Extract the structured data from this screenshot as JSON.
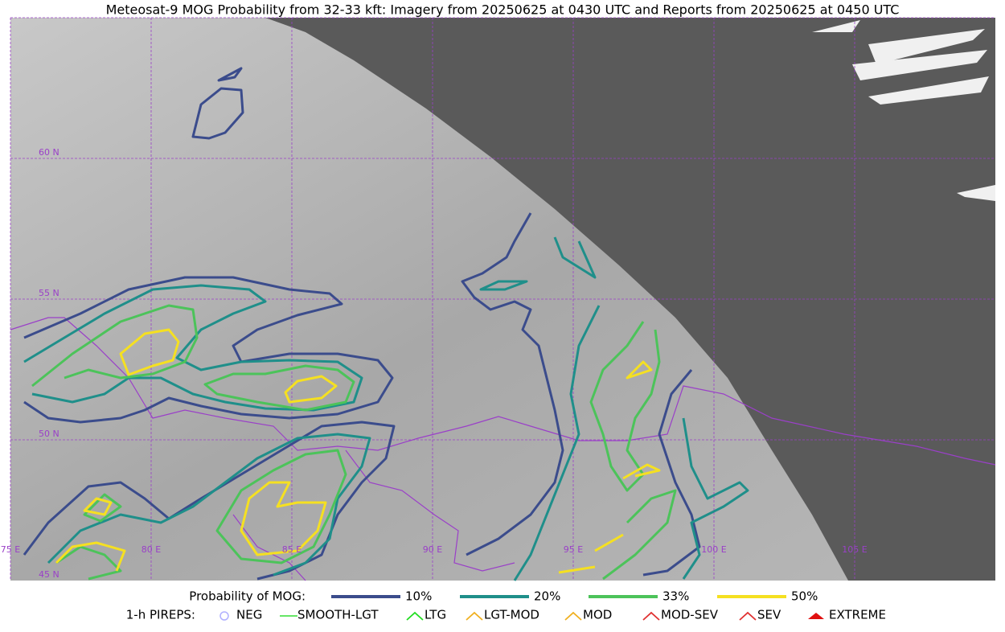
{
  "title": "Meteosat-9 MOG Probability from 32-33 kft: Imagery from 20250625 at 0430 UTC and Reports from 20250625 at 0450 UTC",
  "map": {
    "lat_labels": [
      "60 N",
      "55 N",
      "50 N",
      "45 N"
    ],
    "lon_labels": [
      "75 E",
      "80 E",
      "85 E",
      "90 E",
      "95 E",
      "100 E",
      "105 E"
    ]
  },
  "legend": {
    "probability": {
      "label": "Probability of MOG:",
      "items": [
        {
          "label": "10%",
          "color": "#3b4c8c"
        },
        {
          "label": "20%",
          "color": "#1f8f8a"
        },
        {
          "label": "33%",
          "color": "#4cc35a"
        },
        {
          "label": "50%",
          "color": "#f5e021"
        }
      ]
    },
    "pireps": {
      "label": "1-h PIREPS:",
      "items": [
        {
          "label": "NEG",
          "color": "#b0b0ff"
        },
        {
          "label": "SMOOTH-LGT",
          "color": "#33dd33"
        },
        {
          "label": "LTG",
          "color": "#22dd22"
        },
        {
          "label": "LGT-MOD",
          "color": "#f0b020"
        },
        {
          "label": "MOD",
          "color": "#f0b020"
        },
        {
          "label": "MOD-SEV",
          "color": "#e03030"
        },
        {
          "label": "SEV",
          "color": "#e03030"
        },
        {
          "label": "EXTREME",
          "color": "#e01010"
        }
      ]
    }
  }
}
